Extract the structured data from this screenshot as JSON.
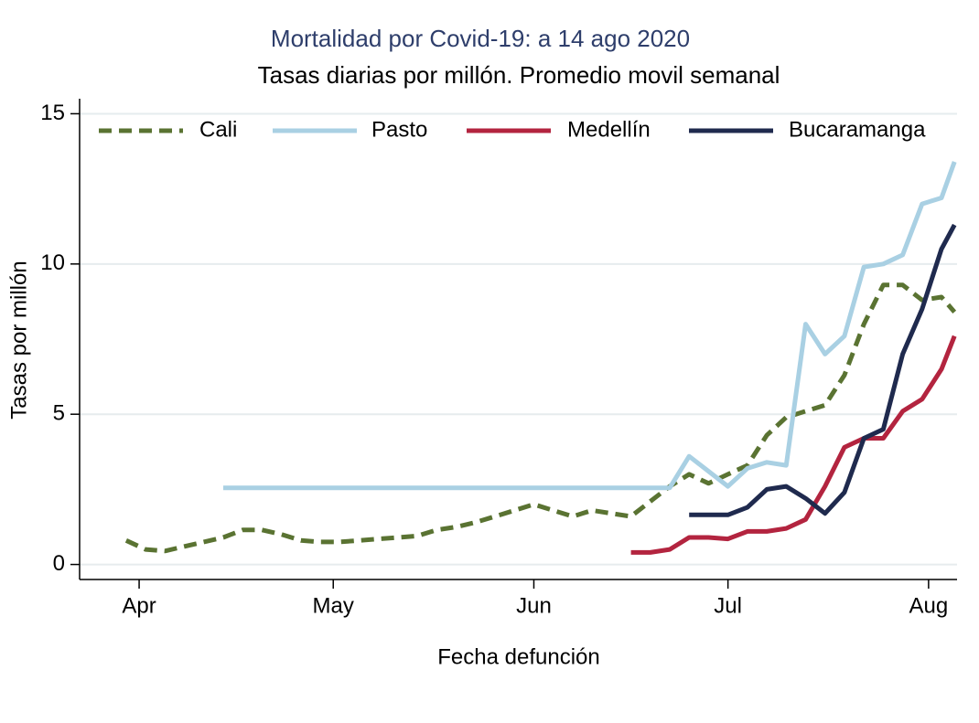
{
  "chart_data": {
    "type": "line",
    "title": "Mortalidad por Covid-19: a  14 ago 2020",
    "subtitle": "Tasas diarias por millón.  Promedio movil semanal",
    "x_label": "Fecha defunción",
    "y_label": "Tasas por millón",
    "x": [
      -2,
      1,
      4,
      7,
      10,
      13,
      16,
      19,
      22,
      25,
      28,
      31,
      34,
      37,
      40,
      43,
      46,
      49,
      52,
      55,
      58,
      61,
      64,
      67,
      70,
      73,
      76,
      79,
      82,
      85,
      88,
      91,
      94,
      97,
      100,
      103,
      106,
      109,
      112,
      115,
      118,
      121,
      124,
      126
    ],
    "xlim": [
      -9.2,
      126.4
    ],
    "xticks": [
      {
        "value": 0,
        "label": "Apr"
      },
      {
        "value": 30,
        "label": "May"
      },
      {
        "value": 61,
        "label": "Jun"
      },
      {
        "value": 91,
        "label": "Jul"
      },
      {
        "value": 122,
        "label": "Aug"
      }
    ],
    "ylim": [
      -0.5,
      15.5
    ],
    "yticks": [
      0,
      5,
      10,
      15
    ],
    "grid": true,
    "legend": "top",
    "series": [
      {
        "name": "Cali",
        "color": "#5a7332",
        "dash": "dashed",
        "values": [
          0.8,
          0.5,
          0.45,
          0.6,
          0.75,
          0.9,
          1.15,
          1.15,
          1.0,
          0.8,
          0.75,
          0.75,
          0.8,
          0.85,
          0.9,
          0.95,
          1.15,
          1.25,
          1.4,
          1.6,
          1.8,
          2.0,
          1.8,
          1.6,
          1.8,
          1.7,
          1.6,
          2.1,
          2.6,
          3.0,
          2.7,
          3.0,
          3.3,
          4.3,
          4.9,
          5.1,
          5.3,
          6.3,
          8.0,
          9.3,
          9.3,
          8.8,
          8.9,
          8.4
        ]
      },
      {
        "name": "Pasto",
        "color": "#a9d0e3",
        "dash": "solid",
        "values": [
          null,
          null,
          null,
          null,
          null,
          2.55,
          2.55,
          2.55,
          2.55,
          2.55,
          2.55,
          2.55,
          2.55,
          2.55,
          2.55,
          2.55,
          2.55,
          2.55,
          2.55,
          2.55,
          2.55,
          2.55,
          2.55,
          2.55,
          2.55,
          2.55,
          2.55,
          2.55,
          2.55,
          3.6,
          3.1,
          2.6,
          3.2,
          3.4,
          3.3,
          8.0,
          7.0,
          7.6,
          9.9,
          10.0,
          10.3,
          12.0,
          12.2,
          13.4
        ]
      },
      {
        "name": "Medellín",
        "color": "#b3243f",
        "dash": "solid",
        "values": [
          null,
          null,
          null,
          null,
          null,
          null,
          null,
          null,
          null,
          null,
          null,
          null,
          null,
          null,
          null,
          null,
          null,
          null,
          null,
          null,
          null,
          null,
          null,
          null,
          null,
          null,
          0.4,
          0.4,
          0.5,
          0.9,
          0.9,
          0.85,
          1.1,
          1.1,
          1.2,
          1.5,
          2.6,
          3.9,
          4.2,
          4.2,
          5.1,
          5.5,
          6.5,
          7.6
        ]
      },
      {
        "name": "Bucaramanga",
        "color": "#1f2a4e",
        "dash": "solid",
        "values": [
          null,
          null,
          null,
          null,
          null,
          null,
          null,
          null,
          null,
          null,
          null,
          null,
          null,
          null,
          null,
          null,
          null,
          null,
          null,
          null,
          null,
          null,
          null,
          null,
          null,
          null,
          null,
          null,
          null,
          1.65,
          1.65,
          1.65,
          1.9,
          2.5,
          2.6,
          2.2,
          1.7,
          2.4,
          4.2,
          4.5,
          7.0,
          8.5,
          10.5,
          11.3
        ]
      }
    ]
  }
}
